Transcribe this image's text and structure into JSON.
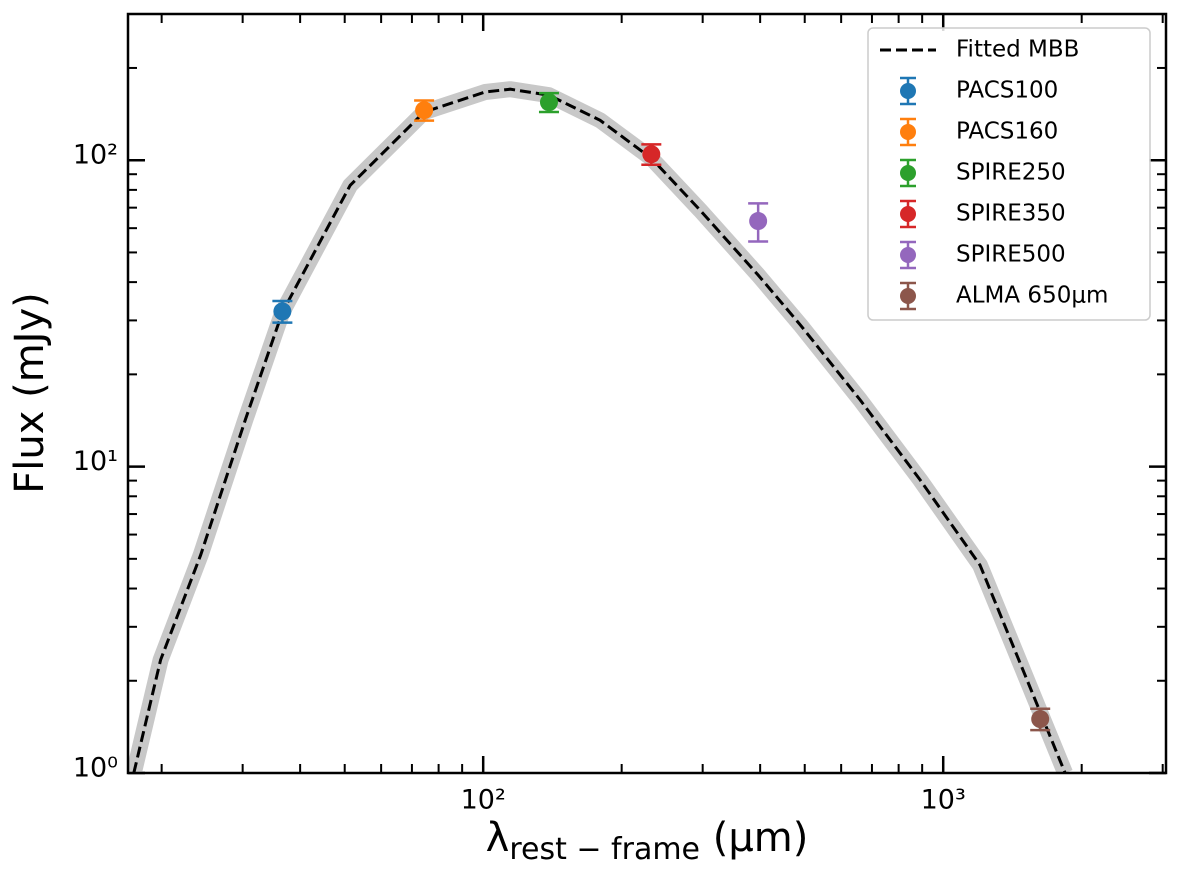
{
  "chart_data": {
    "type": "scatter",
    "xlabel": {
      "symbol": "λ",
      "subscript": "rest − frame",
      "unit": " (μm)"
    },
    "ylabel": "Flux (mJy)",
    "log_x": true,
    "log_y": true,
    "minor_ticks": true,
    "legend": "upper right",
    "xlim": [
      16.9,
      3050
    ],
    "xticks": [
      {
        "value": 100,
        "label": "10²"
      },
      {
        "value": 1000,
        "label": "10³"
      }
    ],
    "ylim": [
      1,
      300
    ],
    "yticks": [
      {
        "value": 1,
        "label": "10⁰"
      },
      {
        "value": 10,
        "label": "10¹"
      },
      {
        "value": 100,
        "label": "10²"
      }
    ],
    "model": {
      "name": "Fitted MBB",
      "color": "#000000",
      "band_color": "#c8c8c8",
      "x": [
        17.4,
        19.9,
        24.3,
        30.4,
        36.6,
        51.4,
        74.4,
        101,
        114.5,
        139,
        179.5,
        232,
        296,
        396,
        489,
        660,
        891,
        1202,
        1625,
        1841
      ],
      "values": [
        1,
        2.34,
        5.14,
        14.2,
        31.9,
        82.8,
        143.5,
        167,
        170.5,
        163,
        135,
        101.5,
        68.7,
        42.2,
        29,
        16.5,
        9.04,
        4.77,
        1.58,
        1
      ]
    },
    "series": [
      {
        "name": "PACS100",
        "color": "#1f77b4",
        "x": [
          36.6
        ],
        "values": [
          32.1
        ],
        "errors": [
          2.6
        ]
      },
      {
        "name": "PACS160",
        "color": "#ff7f0e",
        "x": [
          74.4
        ],
        "values": [
          145.6
        ],
        "errors": [
          11
        ]
      },
      {
        "name": "SPIRE250",
        "color": "#2ca02c",
        "x": [
          139
        ],
        "values": [
          154.6
        ],
        "errors": [
          11
        ]
      },
      {
        "name": "SPIRE350",
        "color": "#d62728",
        "x": [
          232
        ],
        "values": [
          104.6
        ],
        "errors": [
          8
        ]
      },
      {
        "name": "SPIRE500",
        "color": "#9467bd",
        "x": [
          396
        ],
        "values": [
          63.3
        ],
        "errors": [
          9
        ]
      },
      {
        "name": "ALMA 650μm",
        "color": "#8c564b",
        "x": [
          1625
        ],
        "values": [
          1.5
        ],
        "errors": [
          0.12
        ]
      }
    ]
  }
}
